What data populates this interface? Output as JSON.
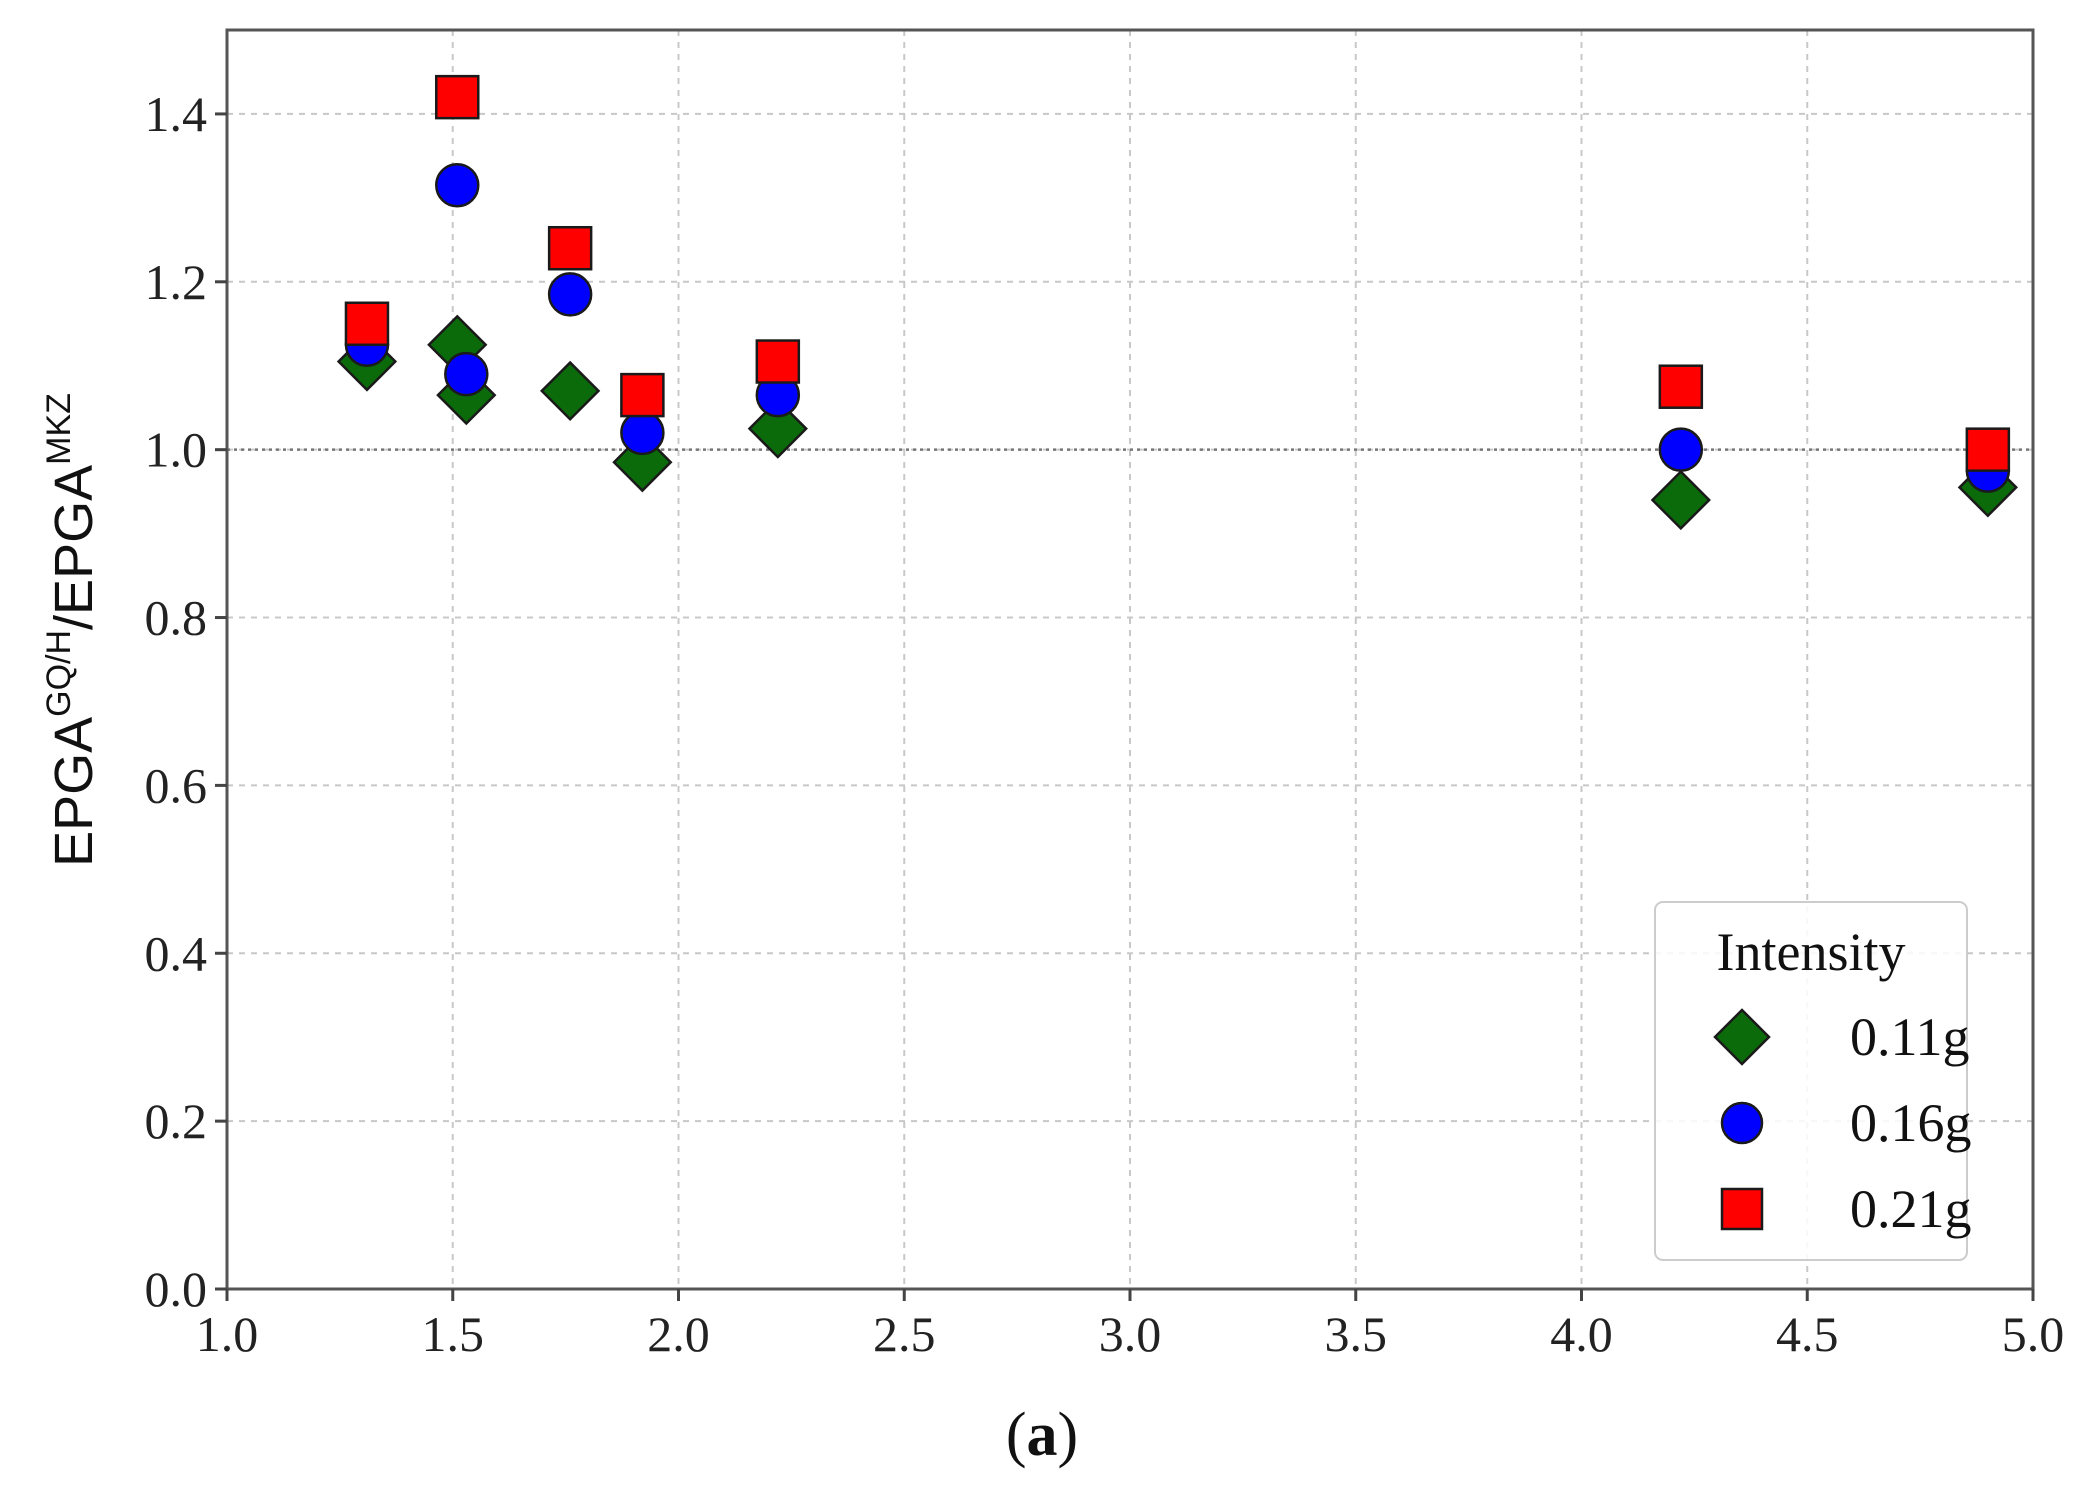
{
  "chart_data": {
    "type": "scatter",
    "xlim": [
      1.0,
      5.0
    ],
    "ylim": [
      0.0,
      1.5
    ],
    "x_ticks": [
      "1.0",
      "1.5",
      "2.0",
      "2.5",
      "3.0",
      "3.5",
      "4.0",
      "4.5",
      "5.0"
    ],
    "y_ticks": [
      "0.0",
      "0.2",
      "0.4",
      "0.6",
      "0.8",
      "1.0",
      "1.2",
      "1.4"
    ],
    "ylabel": {
      "base1": "EPGA",
      "sup1": "GQ/H",
      "slash": "/",
      "base2": "EPGA",
      "sup2": "MKZ"
    },
    "grid": true,
    "reference_line_y": 1.0,
    "legend": {
      "title": "Intensity",
      "position": "lower-right"
    },
    "series": [
      {
        "name": "0.11g",
        "marker": "diamond",
        "color": "#0b6b0b",
        "points": [
          [
            1.31,
            1.105
          ],
          [
            1.51,
            1.125
          ],
          [
            1.53,
            1.065
          ],
          [
            1.76,
            1.07
          ],
          [
            1.92,
            0.985
          ],
          [
            2.22,
            1.025
          ],
          [
            4.22,
            0.94
          ],
          [
            4.9,
            0.955
          ]
        ]
      },
      {
        "name": "0.16g",
        "marker": "circle",
        "color": "#0000ff",
        "points": [
          [
            1.31,
            1.125
          ],
          [
            1.51,
            1.315
          ],
          [
            1.53,
            1.09
          ],
          [
            1.76,
            1.185
          ],
          [
            1.92,
            1.02
          ],
          [
            2.22,
            1.065
          ],
          [
            4.22,
            1.0
          ],
          [
            4.9,
            0.975
          ]
        ]
      },
      {
        "name": "0.21g",
        "marker": "square",
        "color": "#ff0000",
        "points": [
          [
            1.31,
            1.15
          ],
          [
            1.51,
            1.42
          ],
          [
            1.76,
            1.24
          ],
          [
            1.92,
            1.065
          ],
          [
            2.22,
            1.105
          ],
          [
            4.22,
            1.075
          ],
          [
            4.9,
            1.0
          ]
        ]
      }
    ]
  },
  "caption": {
    "open": "(",
    "letter": "a",
    "close": ")"
  }
}
